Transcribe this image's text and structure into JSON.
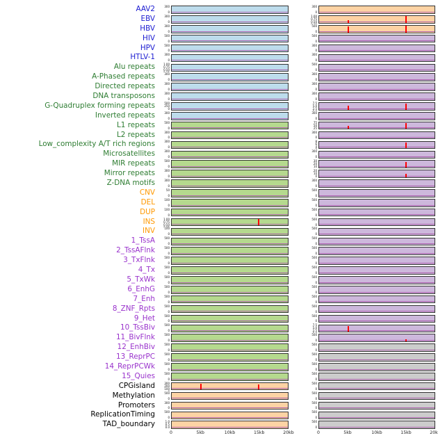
{
  "colors": {
    "label": {
      "virus": "#1b1bd1",
      "repeat": "#2e7d32",
      "sv": "#ff9800",
      "state": "#9932cc",
      "other": "#000000"
    },
    "panel": {
      "blue": "#bddcec",
      "green": "#b5d98e",
      "orange": "#fdd3a4",
      "purple": "#cdb8dc",
      "gray": "#cccccc"
    },
    "spike": "#ff0000",
    "baseline": "#a858a8",
    "axis_text": "#222222"
  },
  "chart_data": {
    "type": "line",
    "layout": "small-multiples, 44 rows x 2 columns of mini genome-track panels",
    "x_ticks": [
      "0",
      "5kb",
      "10kb",
      "15kb",
      "20kb"
    ],
    "x_range_kb": [
      0,
      20
    ],
    "note": "Each panel shows a near-zero baseline trace; red vertical spikes mark peaks at ~5kb and ~15kb in some tracks",
    "rows": [
      {
        "label": "AAV2",
        "group": "virus",
        "left": {
          "panel": "blue",
          "yticks": [
            "300",
            "0"
          ],
          "spikes": []
        },
        "right": {
          "panel": "orange",
          "yticks": [
            "300",
            "0"
          ],
          "spikes": []
        }
      },
      {
        "label": "EBV",
        "group": "virus",
        "left": {
          "panel": "blue",
          "yticks": [
            "300",
            "0"
          ],
          "spikes": []
        },
        "right": {
          "panel": "orange",
          "yticks": [
            "1.00",
            "0.75",
            "0.50",
            "0.25",
            "0.00"
          ],
          "spikes": [
            {
              "kb": 5,
              "h": 0.35
            },
            {
              "kb": 15,
              "h": 1.0
            }
          ]
        }
      },
      {
        "label": "HBV",
        "group": "virus",
        "left": {
          "panel": "blue",
          "yticks": [
            "300",
            "0"
          ],
          "spikes": []
        },
        "right": {
          "panel": "orange",
          "yticks": [
            "500",
            "0"
          ],
          "spikes": [
            {
              "kb": 5,
              "h": 0.9
            },
            {
              "kb": 15,
              "h": 1.0
            }
          ]
        }
      },
      {
        "label": "HIV",
        "group": "virus",
        "left": {
          "panel": "blue",
          "yticks": [
            "500",
            "0"
          ],
          "spikes": []
        },
        "right": {
          "panel": "purple",
          "yticks": [
            "500",
            "0"
          ],
          "spikes": []
        }
      },
      {
        "label": "HPV",
        "group": "virus",
        "left": {
          "panel": "blue",
          "yticks": [
            "500",
            "0"
          ],
          "spikes": []
        },
        "right": {
          "panel": "purple",
          "yticks": [
            "300",
            "0"
          ],
          "spikes": []
        }
      },
      {
        "label": "HTLV-1",
        "group": "virus",
        "left": {
          "panel": "blue",
          "yticks": [
            "300",
            "0"
          ],
          "spikes": []
        },
        "right": {
          "panel": "purple",
          "yticks": [
            "300",
            "0"
          ],
          "spikes": []
        }
      },
      {
        "label": "Alu repeats",
        "group": "repeat",
        "left": {
          "panel": "blue",
          "yticks": [
            "1.00",
            "0.75",
            "0.50",
            "0.25",
            "0.00"
          ],
          "spikes": []
        },
        "right": {
          "panel": "purple",
          "yticks": [
            "500",
            "0"
          ],
          "spikes": []
        }
      },
      {
        "label": "A-Phased repeats",
        "group": "repeat",
        "left": {
          "panel": "blue",
          "yticks": [
            "300",
            "0"
          ],
          "spikes": []
        },
        "right": {
          "panel": "purple",
          "yticks": [
            "300",
            "0"
          ],
          "spikes": []
        }
      },
      {
        "label": "Directed repeats",
        "group": "repeat",
        "left": {
          "panel": "blue",
          "yticks": [
            "300",
            "0"
          ],
          "spikes": []
        },
        "right": {
          "panel": "purple",
          "yticks": [
            "300",
            "0"
          ],
          "spikes": []
        }
      },
      {
        "label": "DNA transposons",
        "group": "repeat",
        "left": {
          "panel": "blue",
          "yticks": [
            "300",
            "0"
          ],
          "spikes": []
        },
        "right": {
          "panel": "purple",
          "yticks": [
            "300",
            "0"
          ],
          "spikes": []
        }
      },
      {
        "label": "G-Quadruplex forming repeats",
        "group": "repeat",
        "left": {
          "panel": "blue",
          "yticks": [
            "500",
            "250",
            "0"
          ],
          "spikes": []
        },
        "right": {
          "panel": "purple",
          "yticks": [
            "7.5",
            "5.0",
            "2.5",
            "0.0"
          ],
          "spikes": [
            {
              "kb": 5,
              "h": 0.55
            },
            {
              "kb": 15,
              "h": 0.9
            }
          ]
        }
      },
      {
        "label": "Inverted repeats",
        "group": "repeat",
        "left": {
          "panel": "blue",
          "yticks": [
            "300",
            "0"
          ],
          "spikes": []
        },
        "right": {
          "panel": "purple",
          "yticks": [
            "300",
            "0"
          ],
          "spikes": []
        }
      },
      {
        "label": "L1 repeats",
        "group": "repeat",
        "left": {
          "panel": "green",
          "yticks": [
            "500",
            "0"
          ],
          "spikes": []
        },
        "right": {
          "panel": "purple",
          "yticks": [
            "75",
            "50",
            "25"
          ],
          "spikes": [
            {
              "kb": 5,
              "h": 0.45
            },
            {
              "kb": 15,
              "h": 0.85
            }
          ]
        }
      },
      {
        "label": "L2 repeats",
        "group": "repeat",
        "left": {
          "panel": "green",
          "yticks": [
            "300",
            "0"
          ],
          "spikes": []
        },
        "right": {
          "panel": "purple",
          "yticks": [
            "300",
            "0"
          ],
          "spikes": []
        }
      },
      {
        "label": "Low_complexity A/T rich regions",
        "group": "repeat",
        "left": {
          "panel": "green",
          "yticks": [
            "300",
            "0"
          ],
          "spikes": []
        },
        "right": {
          "panel": "purple",
          "yticks": [
            "8",
            "6",
            "4",
            "2",
            "0"
          ],
          "spikes": [
            {
              "kb": 15,
              "h": 0.9
            }
          ]
        }
      },
      {
        "label": "Microsatellites",
        "group": "repeat",
        "left": {
          "panel": "green",
          "yticks": [
            "300",
            "0"
          ],
          "spikes": []
        },
        "right": {
          "panel": "purple",
          "yticks": [
            "300",
            "0"
          ],
          "spikes": []
        }
      },
      {
        "label": "MIR repeats",
        "group": "repeat",
        "left": {
          "panel": "green",
          "yticks": [
            "500",
            "0"
          ],
          "spikes": []
        },
        "right": {
          "panel": "purple",
          "yticks": [
            "30",
            "20",
            "10"
          ],
          "spikes": [
            {
              "kb": 15,
              "h": 0.85
            }
          ]
        }
      },
      {
        "label": "Mirror repeats",
        "group": "repeat",
        "left": {
          "panel": "green",
          "yticks": [
            "300",
            "0"
          ],
          "spikes": []
        },
        "right": {
          "panel": "purple",
          "yticks": [
            "20",
            "10",
            "0"
          ],
          "spikes": [
            {
              "kb": 15,
              "h": 0.55
            }
          ]
        }
      },
      {
        "label": "Z-DNA motifs",
        "group": "repeat",
        "left": {
          "panel": "green",
          "yticks": [
            "300",
            "0"
          ],
          "spikes": []
        },
        "right": {
          "panel": "purple",
          "yticks": [
            "300",
            "0"
          ],
          "spikes": []
        }
      },
      {
        "label": "CNV",
        "group": "sv",
        "left": {
          "panel": "green",
          "yticks": [
            "50",
            "0"
          ],
          "spikes": []
        },
        "right": {
          "panel": "purple",
          "yticks": [
            "500",
            "0"
          ],
          "spikes": []
        }
      },
      {
        "label": "DEL",
        "group": "sv",
        "left": {
          "panel": "green",
          "yticks": [
            "100",
            "0"
          ],
          "spikes": []
        },
        "right": {
          "panel": "purple",
          "yticks": [
            "500",
            "0"
          ],
          "spikes": []
        }
      },
      {
        "label": "DUP",
        "group": "sv",
        "left": {
          "panel": "green",
          "yticks": [
            "100",
            "0"
          ],
          "spikes": []
        },
        "right": {
          "panel": "purple",
          "yticks": [
            "500",
            "0"
          ],
          "spikes": []
        }
      },
      {
        "label": "INS",
        "group": "sv",
        "left": {
          "panel": "green",
          "yticks": [
            "1.00",
            "0.75",
            "0.50",
            "0.25",
            "0.00"
          ],
          "spikes": [
            {
              "kb": 15,
              "h": 0.95
            }
          ]
        },
        "right": {
          "panel": "purple",
          "yticks": [
            "500",
            "0"
          ],
          "spikes": []
        }
      },
      {
        "label": "INV",
        "group": "sv",
        "left": {
          "panel": "green",
          "yticks": [
            "100",
            "0"
          ],
          "spikes": []
        },
        "right": {
          "panel": "purple",
          "yticks": [
            "500",
            "0"
          ],
          "spikes": []
        }
      },
      {
        "label": "1_TssA",
        "group": "state",
        "left": {
          "panel": "green",
          "yticks": [
            "500",
            "0"
          ],
          "spikes": []
        },
        "right": {
          "panel": "purple",
          "yticks": [
            "500",
            "0"
          ],
          "spikes": []
        }
      },
      {
        "label": "2_TssAFlnk",
        "group": "state",
        "left": {
          "panel": "green",
          "yticks": [
            "500",
            "0"
          ],
          "spikes": []
        },
        "right": {
          "panel": "purple",
          "yticks": [
            "500",
            "0"
          ],
          "spikes": []
        }
      },
      {
        "label": "3_TxFlnk",
        "group": "state",
        "left": {
          "panel": "green",
          "yticks": [
            "500",
            "0"
          ],
          "spikes": []
        },
        "right": {
          "panel": "purple",
          "yticks": [
            "500",
            "0"
          ],
          "spikes": []
        }
      },
      {
        "label": "4_Tx",
        "group": "state",
        "left": {
          "panel": "green",
          "yticks": [
            "500",
            "0"
          ],
          "spikes": []
        },
        "right": {
          "panel": "purple",
          "yticks": [
            "500",
            "0"
          ],
          "spikes": []
        }
      },
      {
        "label": "5_TxWk",
        "group": "state",
        "left": {
          "panel": "green",
          "yticks": [
            "500",
            "0"
          ],
          "spikes": []
        },
        "right": {
          "panel": "purple",
          "yticks": [
            "500",
            "0"
          ],
          "spikes": []
        }
      },
      {
        "label": "6_EnhG",
        "group": "state",
        "left": {
          "panel": "green",
          "yticks": [
            "500",
            "0"
          ],
          "spikes": []
        },
        "right": {
          "panel": "purple",
          "yticks": [
            "500",
            "0"
          ],
          "spikes": []
        }
      },
      {
        "label": "7_Enh",
        "group": "state",
        "left": {
          "panel": "green",
          "yticks": [
            "500",
            "0"
          ],
          "spikes": []
        },
        "right": {
          "panel": "purple",
          "yticks": [
            "500",
            "0"
          ],
          "spikes": []
        }
      },
      {
        "label": "8_ZNF_Rpts",
        "group": "state",
        "left": {
          "panel": "green",
          "yticks": [
            "500",
            "0"
          ],
          "spikes": []
        },
        "right": {
          "panel": "purple",
          "yticks": [
            "500",
            "0"
          ],
          "spikes": []
        }
      },
      {
        "label": "9_Het",
        "group": "state",
        "left": {
          "panel": "green",
          "yticks": [
            "500",
            "0"
          ],
          "spikes": []
        },
        "right": {
          "panel": "purple",
          "yticks": [
            "500",
            "0"
          ],
          "spikes": []
        }
      },
      {
        "label": "10_TssBiv",
        "group": "state",
        "left": {
          "panel": "green",
          "yticks": [
            "500",
            "0"
          ],
          "spikes": []
        },
        "right": {
          "panel": "purple",
          "yticks": [
            "7.5",
            "5.0",
            "2.5",
            "0.0"
          ],
          "spikes": [
            {
              "kb": 5,
              "h": 0.85
            }
          ]
        }
      },
      {
        "label": "11_BivFlnk",
        "group": "state",
        "left": {
          "panel": "green",
          "yticks": [
            "500",
            "0"
          ],
          "spikes": []
        },
        "right": {
          "panel": "purple",
          "yticks": [
            "500",
            "0"
          ],
          "spikes": [
            {
              "kb": 15,
              "h": 0.35
            }
          ]
        }
      },
      {
        "label": "12_EnhBiv",
        "group": "state",
        "left": {
          "panel": "green",
          "yticks": [
            "500",
            "0"
          ],
          "spikes": []
        },
        "right": {
          "panel": "gray",
          "yticks": [
            "500",
            "0"
          ],
          "spikes": []
        }
      },
      {
        "label": "13_ReprPC",
        "group": "state",
        "left": {
          "panel": "green",
          "yticks": [
            "500",
            "0"
          ],
          "spikes": []
        },
        "right": {
          "panel": "gray",
          "yticks": [
            "500",
            "0"
          ],
          "spikes": []
        }
      },
      {
        "label": "14_ReprPCWk",
        "group": "state",
        "left": {
          "panel": "green",
          "yticks": [
            "500",
            "0"
          ],
          "spikes": []
        },
        "right": {
          "panel": "gray",
          "yticks": [
            "500",
            "0"
          ],
          "spikes": []
        }
      },
      {
        "label": "15_Quies",
        "group": "state",
        "left": {
          "panel": "green",
          "yticks": [
            "500",
            "0"
          ],
          "spikes": []
        },
        "right": {
          "panel": "gray",
          "yticks": [
            "500",
            "0"
          ],
          "spikes": []
        }
      },
      {
        "label": "CPGisland",
        "group": "other",
        "left": {
          "panel": "orange",
          "yticks": [
            "300",
            "200",
            "100",
            "0"
          ],
          "spikes": [
            {
              "kb": 5,
              "h": 0.9
            },
            {
              "kb": 15,
              "h": 0.8
            }
          ]
        },
        "right": {
          "panel": "gray",
          "yticks": [
            "500",
            "0"
          ],
          "spikes": []
        }
      },
      {
        "label": "Methylation",
        "group": "other",
        "left": {
          "panel": "orange",
          "yticks": [
            "500",
            "0"
          ],
          "spikes": []
        },
        "right": {
          "panel": "gray",
          "yticks": [
            "500",
            "0"
          ],
          "spikes": []
        }
      },
      {
        "label": "Promoters",
        "group": "other",
        "left": {
          "panel": "orange",
          "yticks": [
            "300",
            "0"
          ],
          "spikes": []
        },
        "right": {
          "panel": "gray",
          "yticks": [
            "500",
            "0"
          ],
          "spikes": []
        }
      },
      {
        "label": "ReplicationTiming",
        "group": "other",
        "left": {
          "panel": "orange",
          "yticks": [
            "500",
            "0"
          ],
          "spikes": []
        },
        "right": {
          "panel": "gray",
          "yticks": [
            "500",
            "0"
          ],
          "spikes": []
        }
      },
      {
        "label": "TAD_boundary",
        "group": "other",
        "left": {
          "panel": "orange",
          "yticks": [
            "1.0",
            "0.5",
            "0.0"
          ],
          "spikes": []
        },
        "right": {
          "panel": "gray",
          "yticks": [
            "500",
            "0"
          ],
          "spikes": []
        }
      }
    ]
  }
}
